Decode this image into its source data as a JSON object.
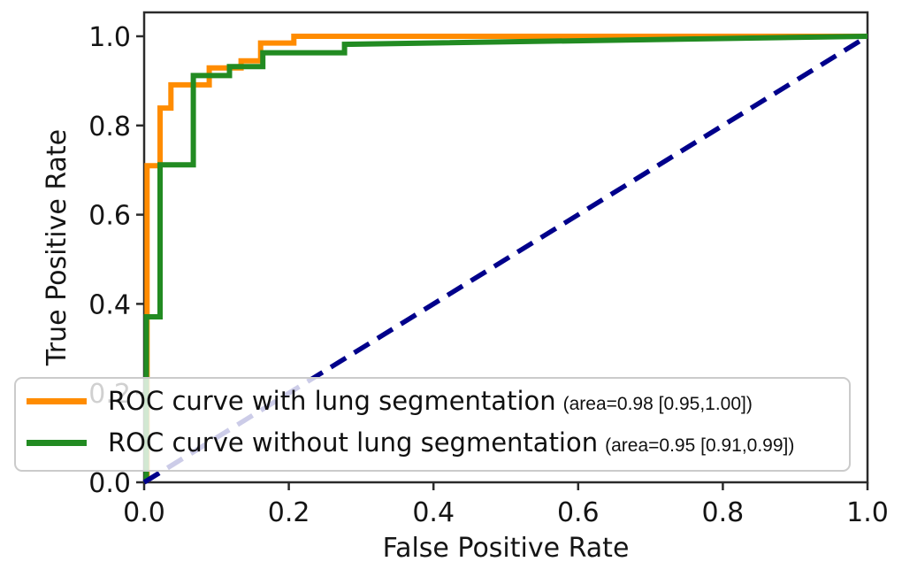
{
  "chart_data": {
    "type": "line",
    "title": "",
    "xlabel": "False Positive Rate",
    "ylabel": "True Positive Rate",
    "xlim": [
      0.0,
      1.0
    ],
    "ylim": [
      0.0,
      1.05
    ],
    "grid": false,
    "legend_position": "lower center, wide box spanning plot width",
    "x_axis": {
      "tick_values": [
        0.0,
        0.2,
        0.4,
        0.6,
        0.8,
        1.0
      ],
      "tick_labels": [
        "0.0",
        "0.2",
        "0.4",
        "0.6",
        "0.8",
        "1.0"
      ]
    },
    "y_axis": {
      "tick_values": [
        0.0,
        0.2,
        0.4,
        0.6,
        0.8,
        1.0
      ],
      "tick_labels": [
        "0.0",
        "0.2",
        "0.4",
        "0.6",
        "0.8",
        "1.0"
      ]
    },
    "series": [
      {
        "id": "roc-with-lung-segmentation",
        "name": "ROC curve with lung segmentation",
        "area_label": "(area=0.98 [0.95,1.00])",
        "color": "#FF8C00",
        "line_style": "solid",
        "in_legend": true,
        "points": [
          [
            0.004,
            0
          ],
          [
            0.004,
            0.71
          ],
          [
            0.022,
            0.71
          ],
          [
            0.022,
            0.839
          ],
          [
            0.037,
            0.839
          ],
          [
            0.037,
            0.891
          ],
          [
            0.09,
            0.891
          ],
          [
            0.09,
            0.929
          ],
          [
            0.134,
            0.929
          ],
          [
            0.134,
            0.945
          ],
          [
            0.161,
            0.945
          ],
          [
            0.161,
            0.985
          ],
          [
            0.207,
            0.985
          ],
          [
            0.207,
            1.0
          ],
          [
            1.0,
            1.0
          ]
        ]
      },
      {
        "id": "roc-without-lung-segmentation",
        "name": "ROC curve without lung segmentation",
        "area_label": "(area=0.95 [0.91,0.99])",
        "color": "#228B22",
        "line_style": "solid",
        "in_legend": true,
        "points": [
          [
            0.003,
            0
          ],
          [
            0.003,
            0.371
          ],
          [
            0.022,
            0.371
          ],
          [
            0.022,
            0.712
          ],
          [
            0.068,
            0.712
          ],
          [
            0.068,
            0.912
          ],
          [
            0.118,
            0.912
          ],
          [
            0.118,
            0.932
          ],
          [
            0.164,
            0.932
          ],
          [
            0.164,
            0.963
          ],
          [
            0.277,
            0.963
          ],
          [
            0.277,
            0.982
          ],
          [
            1.0,
            1.0
          ]
        ]
      },
      {
        "id": "chance-diagonal",
        "name": "chance line",
        "area_label": "",
        "color": "#00008B",
        "line_style": "dashed",
        "in_legend": false,
        "points": [
          [
            0.0,
            0.0
          ],
          [
            1.0,
            1.0
          ]
        ]
      }
    ],
    "style_colors": {
      "spine": "#2b2b2b",
      "text": "#151515",
      "legend_border": "#cbcbcb"
    }
  }
}
